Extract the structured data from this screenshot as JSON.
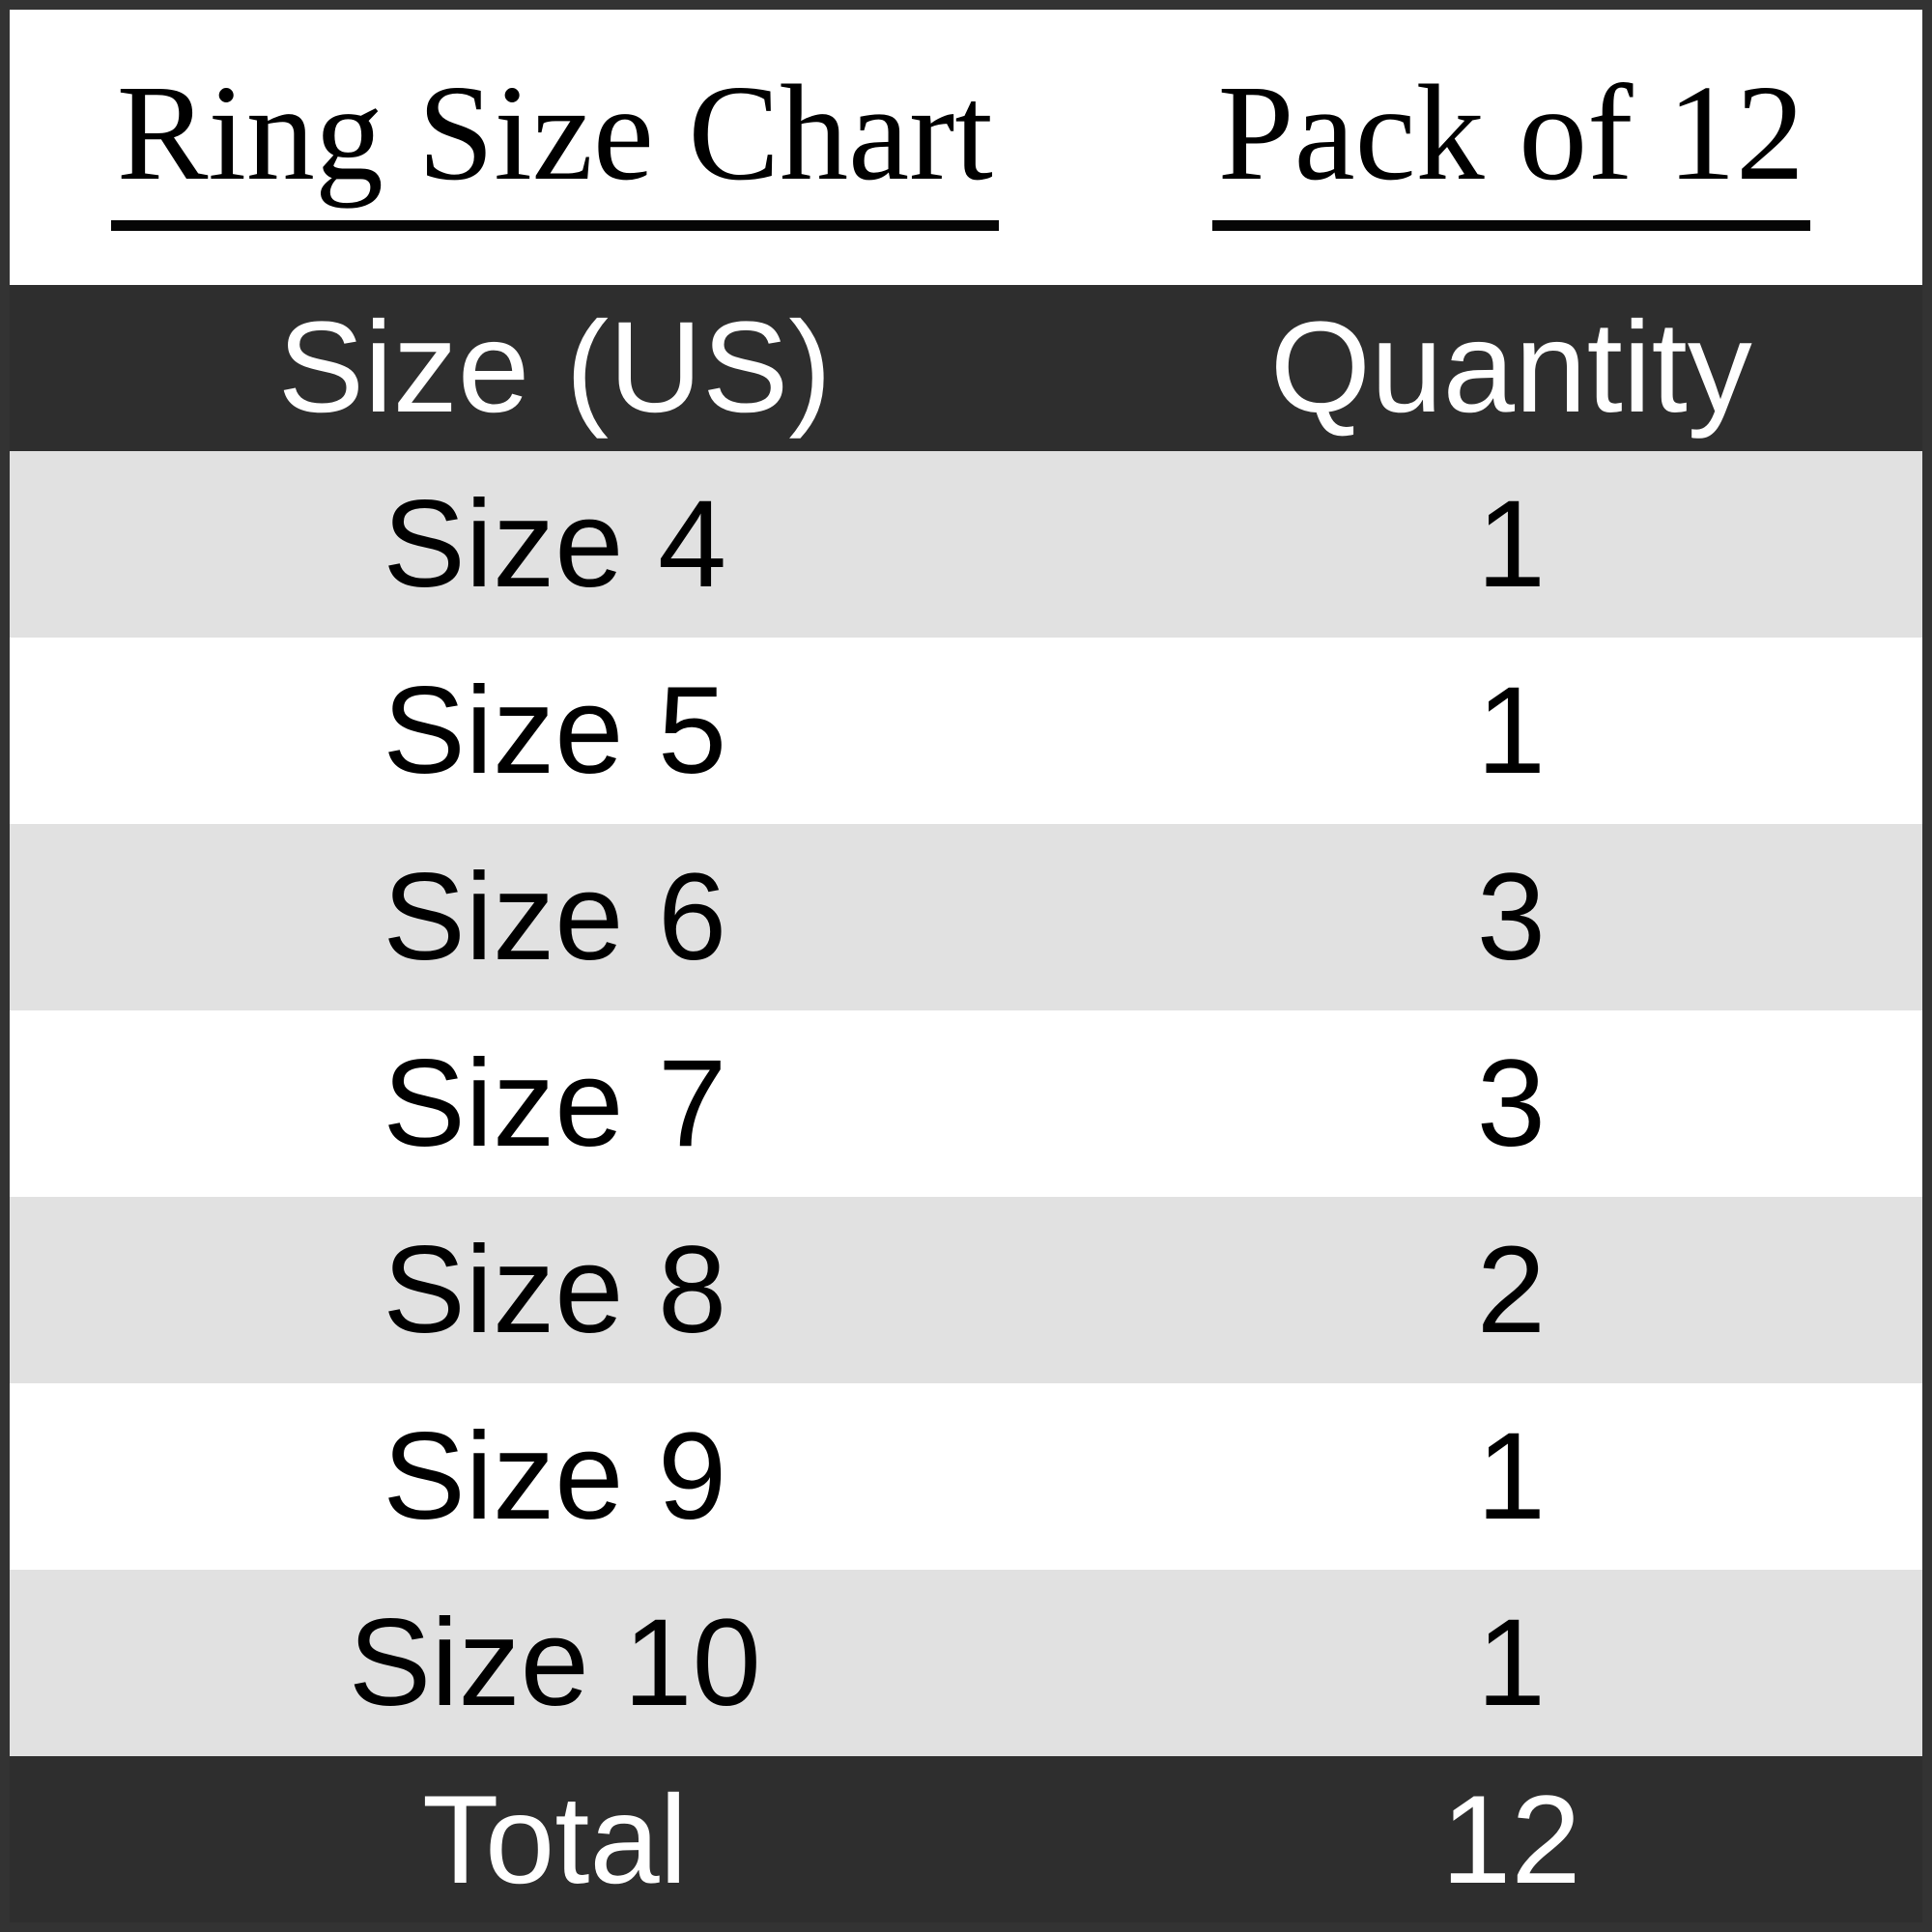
{
  "titles": {
    "left": "Ring Size Chart",
    "right": "Pack of 12"
  },
  "table": {
    "columns": [
      "Size (US)",
      "Quantity"
    ],
    "rows": [
      {
        "size": "Size 4",
        "quantity": "1"
      },
      {
        "size": "Size 5",
        "quantity": "1"
      },
      {
        "size": "Size 6",
        "quantity": "3"
      },
      {
        "size": "Size 7",
        "quantity": "3"
      },
      {
        "size": "Size 8",
        "quantity": "2"
      },
      {
        "size": "Size 9",
        "quantity": "1"
      },
      {
        "size": "Size 10",
        "quantity": "1"
      }
    ],
    "footer": {
      "label": "Total",
      "value": "12"
    }
  },
  "chart_data": {
    "type": "table",
    "title": "Ring Size Chart",
    "subtitle": "Pack of 12",
    "columns": [
      "Size (US)",
      "Quantity"
    ],
    "categories": [
      "Size 4",
      "Size 5",
      "Size 6",
      "Size 7",
      "Size 8",
      "Size 9",
      "Size 10"
    ],
    "values": [
      1,
      1,
      3,
      3,
      2,
      1,
      1
    ],
    "total": 12,
    "layout_hints": {
      "alternating_row_shading": true,
      "shaded_row_indices": [
        0,
        2,
        4,
        6
      ],
      "header_and_footer_dark": true
    }
  },
  "colors": {
    "dark": "#2e2e2e",
    "row_shade": "#e1e1e1",
    "row_plain": "#ffffff",
    "border": "#333333",
    "title_text": "#000000",
    "header_text": "#ffffff"
  }
}
